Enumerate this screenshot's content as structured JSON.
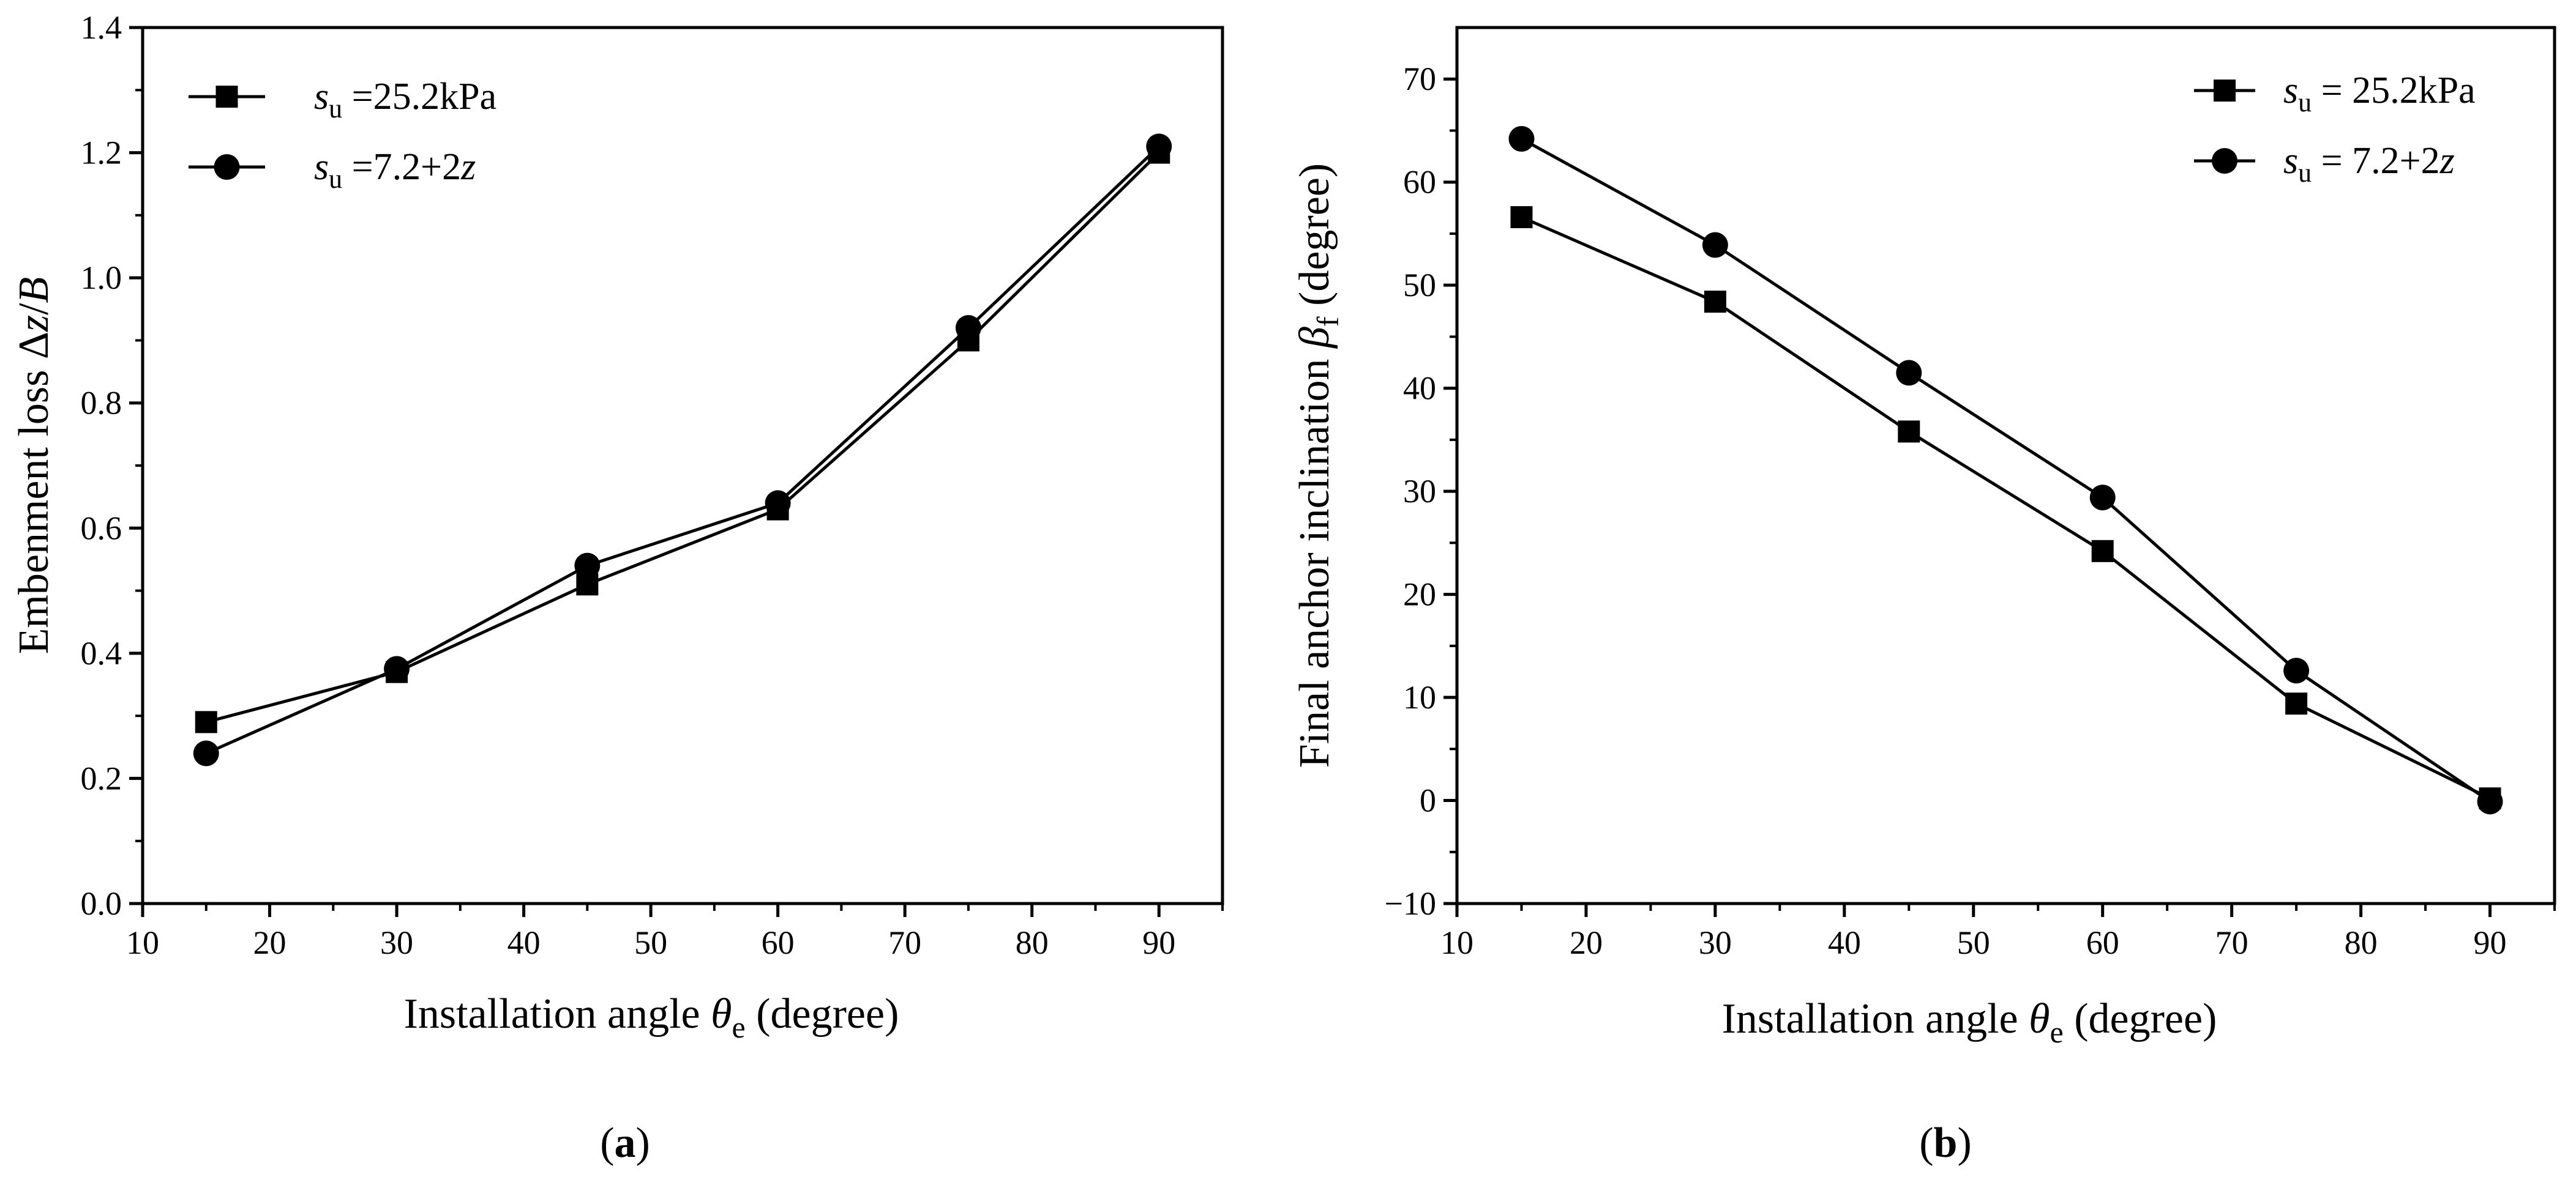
{
  "figure": {
    "colors": {
      "line": "#000000",
      "background": "#ffffff"
    }
  },
  "chart_data": [
    {
      "type": "line",
      "panel_label": "(a)",
      "title": "",
      "xlabel": "Installation angle θe (degree)",
      "xlabel_parts": {
        "main": "Installation angle ",
        "symbol": "θ",
        "sub": "e",
        "tail": " (degree)"
      },
      "ylabel": "Embenment loss Δz/B",
      "ylabel_parts": {
        "main": "Embenment loss Δ",
        "z": "z",
        "slash": "/",
        "b": "B"
      },
      "xlim": [
        10,
        95
      ],
      "ylim": [
        0,
        1.4
      ],
      "xticks": [
        10,
        20,
        30,
        40,
        50,
        60,
        70,
        80,
        90
      ],
      "yticks": [
        0.0,
        0.2,
        0.4,
        0.6,
        0.8,
        1.0,
        1.2,
        1.4
      ],
      "ytick_labels": [
        "0.0",
        "0.2",
        "0.4",
        "0.6",
        "0.8",
        "1.0",
        "1.2",
        "1.4"
      ],
      "x": [
        15,
        30,
        45,
        60,
        75,
        90
      ],
      "legend_position": "top-left",
      "series": [
        {
          "name": "su =25.2kPa",
          "label_parts": {
            "s": "s",
            "sub": "u",
            "rest": " =25.2kPa"
          },
          "marker": "square",
          "values": [
            0.29,
            0.37,
            0.51,
            0.63,
            0.9,
            1.2
          ]
        },
        {
          "name": "su =7.2+2z",
          "label_parts": {
            "s": "s",
            "sub": "u",
            "rest": " =7.2+2",
            "z": "z"
          },
          "marker": "circle",
          "values": [
            0.24,
            0.375,
            0.54,
            0.64,
            0.92,
            1.21
          ]
        }
      ]
    },
    {
      "type": "line",
      "panel_label": "(b)",
      "title": "",
      "xlabel": "Installation angle θe (degree)",
      "xlabel_parts": {
        "main": "Installation angle ",
        "symbol": "θ",
        "sub": "e",
        "tail": " (degree)"
      },
      "ylabel": "Final anchor inclination βf (degree)",
      "ylabel_parts": {
        "main": "Final anchor inclination ",
        "symbol": "β",
        "sub": "f",
        "tail": " (degree)"
      },
      "xlim": [
        10,
        95
      ],
      "ylim": [
        -10,
        75
      ],
      "xticks": [
        10,
        20,
        30,
        40,
        50,
        60,
        70,
        80,
        90
      ],
      "yticks": [
        -10,
        0,
        10,
        20,
        30,
        40,
        50,
        60,
        70
      ],
      "ytick_labels": [
        "−10",
        "0",
        "10",
        "20",
        "30",
        "40",
        "50",
        "60",
        "70"
      ],
      "x": [
        15,
        30,
        45,
        60,
        75,
        90
      ],
      "legend_position": "top-right",
      "series": [
        {
          "name": "su = 25.2kPa",
          "label_parts": {
            "s": "s",
            "sub": "u",
            "rest": " = 25.2kPa"
          },
          "marker": "square",
          "values": [
            56.6,
            48.4,
            35.8,
            24.2,
            9.4,
            0.2
          ]
        },
        {
          "name": "su = 7.2+2z",
          "label_parts": {
            "s": "s",
            "sub": "u",
            "rest": " = 7.2+2",
            "z": "z"
          },
          "marker": "circle",
          "values": [
            64.2,
            53.9,
            41.5,
            29.4,
            12.6,
            -0.1
          ]
        }
      ]
    }
  ]
}
